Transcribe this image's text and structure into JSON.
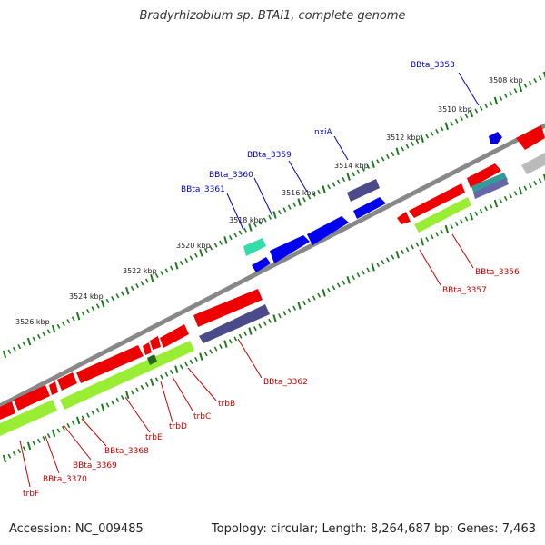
{
  "title": "Bradyrhizobium sp. BTAi1, complete genome",
  "footer": {
    "accession": "Accession: NC_009485",
    "summary": "Topology: circular; Length: 8,264,687 bp; Genes: 7,463"
  },
  "colors": {
    "backbone": "#808080",
    "forward_gene": "#ee0000",
    "reverse_gene": "#0000ee",
    "rna": "#99ee33",
    "navy_gene": "#4b4b8c",
    "teal_gene": "#33cc99",
    "grey_gene": "#bbbbbb",
    "tick": "#1a7a1a",
    "forward_label": "#0000cc",
    "reverse_label": "#cc0000"
  },
  "ticks": [
    {
      "label": "3508 kbp"
    },
    {
      "label": "3510 kbp"
    },
    {
      "label": "3512 kbp"
    },
    {
      "label": "3514 kbp"
    },
    {
      "label": "3516 kbp"
    },
    {
      "label": "3518 kbp"
    },
    {
      "label": "3520 kbp"
    },
    {
      "label": "3522 kbp"
    },
    {
      "label": "3524 kbp"
    },
    {
      "label": "3526 kbp"
    }
  ],
  "forward_labels": [
    {
      "text": "BBta_3353"
    },
    {
      "text": "nxiA"
    },
    {
      "text": "BBta_3359"
    },
    {
      "text": "BBta_3360"
    },
    {
      "text": "BBta_3361"
    }
  ],
  "reverse_labels": [
    {
      "text": "BBta_3356"
    },
    {
      "text": "BBta_3357"
    },
    {
      "text": "BBta_3362"
    },
    {
      "text": "trbB"
    },
    {
      "text": "trbC"
    },
    {
      "text": "trbD"
    },
    {
      "text": "trbE"
    },
    {
      "text": "BBta_3368"
    },
    {
      "text": "BBta_3369"
    },
    {
      "text": "BBta_3370"
    },
    {
      "text": "trbF"
    }
  ]
}
